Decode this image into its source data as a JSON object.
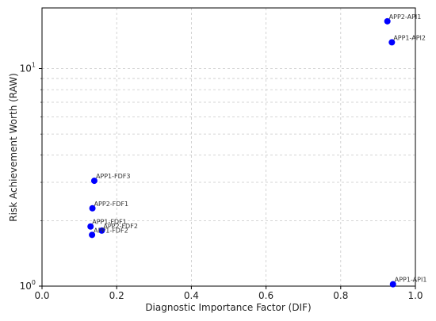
{
  "chart_data": {
    "type": "scatter",
    "title": "",
    "xlabel": "Diagnostic Importance Factor (DIF)",
    "ylabel": "Risk Achievement Worth (RAW)",
    "xlim": [
      0.0,
      1.0
    ],
    "ylim": [
      1.0,
      19.0
    ],
    "yscale": "log",
    "grid": true,
    "x_ticks": [
      "0.0",
      "0.2",
      "0.4",
      "0.6",
      "0.8",
      "1.0"
    ],
    "y_ticks": [
      "10",
      "1"
    ],
    "marker_color": "#0000ff",
    "points": [
      {
        "label": "APP2-API1",
        "x": 0.925,
        "y": 16.5
      },
      {
        "label": "APP1-API2",
        "x": 0.937,
        "y": 13.2
      },
      {
        "label": "APP1-FDF3",
        "x": 0.14,
        "y": 3.05
      },
      {
        "label": "APP2-FDF1",
        "x": 0.135,
        "y": 2.28
      },
      {
        "label": "APP1-FDF1",
        "x": 0.13,
        "y": 1.88
      },
      {
        "label": "APP2-FDF2",
        "x": 0.16,
        "y": 1.8
      },
      {
        "label": "APP1-FDF2",
        "x": 0.134,
        "y": 1.72
      },
      {
        "label": "APP1-API1",
        "x": 0.94,
        "y": 1.02
      }
    ]
  }
}
